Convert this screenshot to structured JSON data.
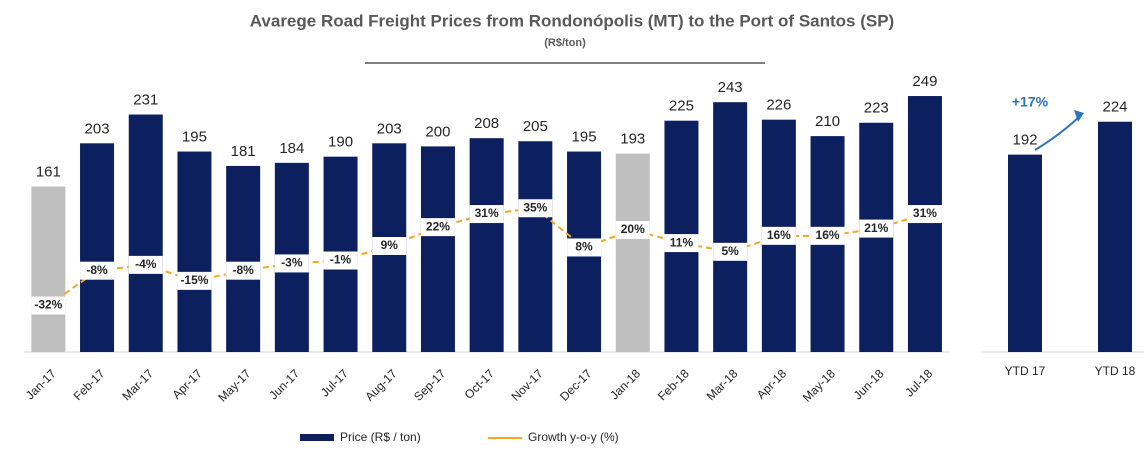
{
  "chart_data": [
    {
      "type": "bar",
      "title": "Avarege Road Freight Prices from Rondonópolis (MT) to the Port of Santos (SP)",
      "subtitle": "(R$/ton)",
      "categories": [
        "Jan-17",
        "Feb-17",
        "Mar-17",
        "Apr-17",
        "May-17",
        "Jun-17",
        "Jul-17",
        "Aug-17",
        "Sep-17",
        "Oct-17",
        "Nov-17",
        "Dec-17",
        "Jan-18",
        "Feb-18",
        "Mar-18",
        "Apr-18",
        "May-18",
        "Jun-18",
        "Jul-18"
      ],
      "series": [
        {
          "name": "Price (R$ / ton)",
          "color": "#0c1f5e",
          "colors": [
            "#bfbfbf",
            "#0c1f5e",
            "#0c1f5e",
            "#0c1f5e",
            "#0c1f5e",
            "#0c1f5e",
            "#0c1f5e",
            "#0c1f5e",
            "#0c1f5e",
            "#0c1f5e",
            "#0c1f5e",
            "#0c1f5e",
            "#bfbfbf",
            "#0c1f5e",
            "#0c1f5e",
            "#0c1f5e",
            "#0c1f5e",
            "#0c1f5e",
            "#0c1f5e"
          ],
          "values": [
            161,
            203,
            231,
            195,
            181,
            184,
            190,
            203,
            200,
            208,
            205,
            195,
            193,
            225,
            243,
            226,
            210,
            223,
            249
          ]
        },
        {
          "name": "Growth y-o-y (%)",
          "color": "#f5a623",
          "type": "line",
          "axis": "y2",
          "values": [
            -32,
            -8,
            -4,
            -15,
            -8,
            -3,
            -1,
            9,
            22,
            31,
            35,
            8,
            20,
            11,
            5,
            16,
            16,
            21,
            31
          ],
          "value_labels": [
            "-32%",
            "-8%",
            "-4%",
            "-15%",
            "-8%",
            "-3%",
            "-1%",
            "9%",
            "22%",
            "31%",
            "35%",
            "8%",
            "20%",
            "11%",
            "5%",
            "16%",
            "16%",
            "21%",
            "31%"
          ]
        }
      ],
      "ylim": [
        0,
        250
      ],
      "y2lim": [
        -64,
        113
      ]
    },
    {
      "type": "bar",
      "categories": [
        "YTD 17",
        "YTD 18"
      ],
      "values": [
        192,
        224
      ],
      "color": "#0c1f5e",
      "annotation": "+17%",
      "annotation_color": "#2e75b6",
      "ylim": [
        0,
        250
      ]
    }
  ]
}
